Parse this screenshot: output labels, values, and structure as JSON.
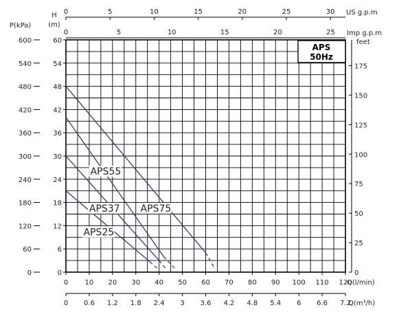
{
  "chart_data": {
    "type": "line",
    "legend_box": {
      "line1": "APS",
      "line2": "50Hz"
    },
    "x_primary": {
      "label": "Q(l/min)",
      "ticks": [
        0,
        10,
        20,
        30,
        40,
        50,
        60,
        70,
        80,
        90,
        100,
        110,
        120
      ],
      "range": [
        0,
        120
      ]
    },
    "x_m3h": {
      "label": "Q(m³/h)",
      "ticks": [
        "0",
        "0.6",
        "1.2",
        "1.8",
        "2.4",
        "3",
        "3.6",
        "4.2",
        "4.8",
        "5.4",
        "6",
        "6.6",
        "7.2"
      ]
    },
    "x_usgpm": {
      "label": "US g.p.m",
      "ticks": [
        "0",
        "5",
        "10",
        "15",
        "20",
        "25",
        "30"
      ],
      "values": [
        0,
        5,
        10,
        15,
        20,
        25,
        30
      ]
    },
    "x_impgpm": {
      "label": "Imp g.p.m",
      "ticks": [
        "0",
        "5",
        "10",
        "15",
        "20",
        "25"
      ],
      "values": [
        0,
        5,
        10,
        15,
        20,
        25
      ]
    },
    "y_head": {
      "label_top": "H",
      "label_unit": "(m)",
      "ticks": [
        "0",
        "6",
        "12",
        "18",
        "24",
        "30",
        "36",
        "42",
        "48",
        "54",
        "60"
      ],
      "range": [
        0,
        60
      ]
    },
    "y_kpa": {
      "label": "P(kPa)",
      "ticks": [
        "0",
        "60",
        "120",
        "180",
        "240",
        "300",
        "360",
        "420",
        "480",
        "540",
        "600"
      ]
    },
    "y_feet": {
      "label": "feet",
      "ticks": [
        "0",
        "25",
        "50",
        "75",
        "100",
        "125",
        "150",
        "175"
      ],
      "values": [
        0,
        25,
        50,
        75,
        100,
        125,
        150,
        175
      ]
    },
    "series": [
      {
        "name": "APS25",
        "solid": [
          [
            0,
            21
          ],
          [
            36,
            2.7
          ]
        ],
        "dashed": [
          [
            36,
            2.7
          ],
          [
            40,
            0.5
          ]
        ]
      },
      {
        "name": "APS37",
        "solid": [
          [
            0,
            30
          ],
          [
            40,
            3
          ]
        ],
        "dashed": [
          [
            40,
            3
          ],
          [
            43,
            0.8
          ]
        ]
      },
      {
        "name": "APS55",
        "solid": [
          [
            0,
            40
          ],
          [
            42,
            4
          ]
        ],
        "dashed": [
          [
            42,
            4
          ],
          [
            47,
            0.8
          ]
        ]
      },
      {
        "name": "APS75",
        "solid": [
          [
            0,
            48
          ],
          [
            60,
            5
          ]
        ],
        "dashed": [
          [
            0,
            50.2
          ],
          [
            0,
            48
          ],
          [
            60,
            5
          ],
          [
            64,
            0.8
          ]
        ]
      }
    ],
    "series_labels": [
      {
        "name": "APS55",
        "at": [
          10.5,
          25.2
        ]
      },
      {
        "name": "APS37",
        "at": [
          10,
          15.6
        ]
      },
      {
        "name": "APS75",
        "at": [
          32,
          15.6
        ]
      },
      {
        "name": "APS25",
        "at": [
          7.5,
          9.5
        ]
      }
    ]
  }
}
